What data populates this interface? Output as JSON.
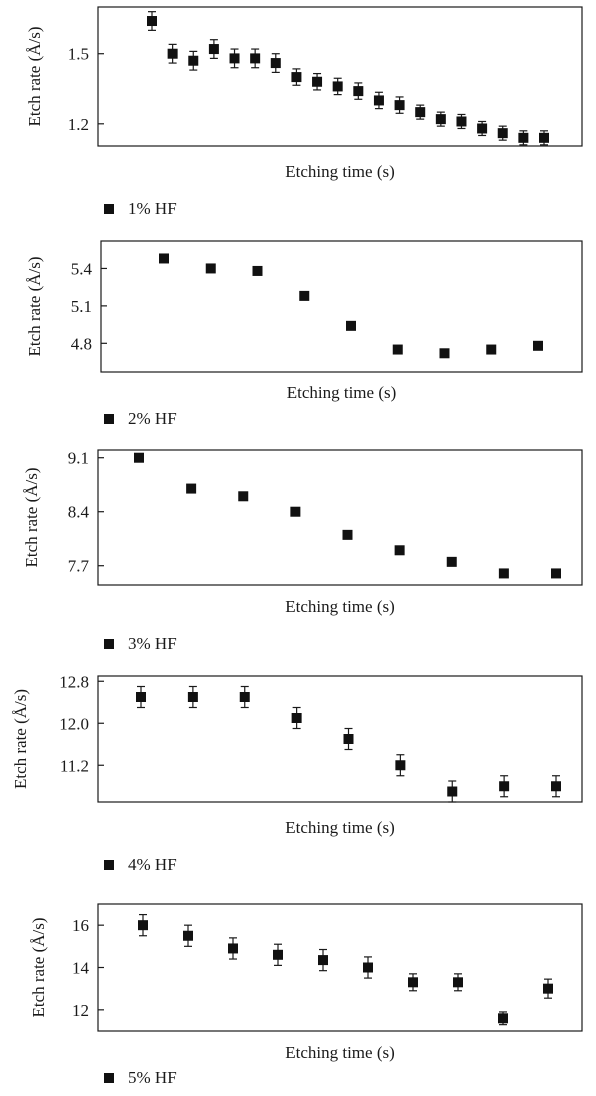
{
  "chart_data": [
    {
      "type": "scatter",
      "xlabel": "Etching time (s)",
      "ylabel": "Etch rate (Å/s)",
      "ylim": [
        1.105,
        1.7
      ],
      "yticks": [
        "1.5",
        "1.2"
      ],
      "ytick_values": [
        1.5,
        1.2
      ],
      "grid": false,
      "legend_position": "bottom-left",
      "series": [
        {
          "name": "1% HF",
          "marker": "square",
          "x": [
            1,
            2,
            3,
            4,
            5,
            6,
            7,
            8,
            9,
            10,
            11,
            12,
            13,
            14,
            15,
            16,
            17,
            18,
            19,
            20
          ],
          "y": [
            1.64,
            1.5,
            1.47,
            1.52,
            1.48,
            1.48,
            1.46,
            1.4,
            1.38,
            1.36,
            1.34,
            1.3,
            1.28,
            1.25,
            1.22,
            1.21,
            1.18,
            1.16,
            1.14,
            1.14
          ],
          "yerr": [
            0.04,
            0.04,
            0.04,
            0.04,
            0.04,
            0.04,
            0.04,
            0.035,
            0.035,
            0.035,
            0.035,
            0.035,
            0.035,
            0.03,
            0.03,
            0.03,
            0.03,
            0.03,
            0.03,
            0.03
          ]
        }
      ]
    },
    {
      "type": "scatter",
      "xlabel": "Etching time (s)",
      "ylabel": "Etch rate (Å/s)",
      "ylim": [
        4.57,
        5.62
      ],
      "yticks": [
        "5.4",
        "5.1",
        "4.8"
      ],
      "ytick_values": [
        5.4,
        5.1,
        4.8
      ],
      "grid": false,
      "legend_position": "bottom-left",
      "series": [
        {
          "name": "2% HF",
          "marker": "square",
          "x": [
            1,
            2,
            3,
            4,
            5,
            6,
            7,
            8,
            9
          ],
          "y": [
            5.48,
            5.4,
            5.38,
            5.18,
            4.94,
            4.75,
            4.72,
            4.75,
            4.78
          ],
          "yerr": [
            0.03,
            0.03,
            0.03,
            0.03,
            0.03,
            0.03,
            0.03,
            0.03,
            0.03
          ]
        }
      ]
    },
    {
      "type": "scatter",
      "xlabel": "Etching time (s)",
      "ylabel": "Etch rate (Å/s)",
      "ylim": [
        7.45,
        9.2
      ],
      "yticks": [
        "9.1",
        "8.4",
        "7.7"
      ],
      "ytick_values": [
        9.1,
        8.4,
        7.7
      ],
      "grid": false,
      "legend_position": "bottom-left",
      "series": [
        {
          "name": "3% HF",
          "marker": "square",
          "x": [
            1,
            2,
            3,
            4,
            5,
            6,
            7,
            8,
            9
          ],
          "y": [
            9.1,
            8.7,
            8.6,
            8.4,
            8.1,
            7.9,
            7.75,
            7.6,
            7.6
          ],
          "yerr": [
            0,
            0,
            0,
            0,
            0,
            0,
            0,
            0,
            0
          ]
        }
      ]
    },
    {
      "type": "scatter",
      "xlabel": "Etching time (s)",
      "ylabel": "Etch rate (Å/s)",
      "ylim": [
        10.5,
        12.9
      ],
      "yticks": [
        "12.8",
        "12.0",
        "11.2"
      ],
      "ytick_values": [
        12.8,
        12.0,
        11.2
      ],
      "grid": false,
      "legend_position": "bottom-left",
      "series": [
        {
          "name": "4% HF",
          "marker": "square",
          "x": [
            1,
            2,
            3,
            4,
            5,
            6,
            7,
            8,
            9
          ],
          "y": [
            12.5,
            12.5,
            12.5,
            12.1,
            11.7,
            11.2,
            10.7,
            10.8,
            10.8
          ],
          "yerr": [
            0.2,
            0.2,
            0.2,
            0.2,
            0.2,
            0.2,
            0.2,
            0.2,
            0.2
          ]
        }
      ]
    },
    {
      "type": "scatter",
      "xlabel": "Etching time (s)",
      "ylabel": "Etch rate (Å/s)",
      "ylim": [
        11,
        17
      ],
      "yticks": [
        "16",
        "14",
        "12"
      ],
      "ytick_values": [
        16,
        14,
        12
      ],
      "grid": false,
      "legend_position": "bottom-left",
      "series": [
        {
          "name": "5% HF",
          "marker": "square",
          "x": [
            1,
            2,
            3,
            4,
            5,
            6,
            7,
            8,
            9,
            10
          ],
          "y": [
            16.0,
            15.5,
            14.9,
            14.6,
            14.35,
            14.0,
            13.3,
            13.3,
            11.6,
            13.0
          ],
          "yerr": [
            0.5,
            0.5,
            0.5,
            0.5,
            0.5,
            0.5,
            0.4,
            0.4,
            0.3,
            0.45
          ]
        }
      ]
    }
  ]
}
